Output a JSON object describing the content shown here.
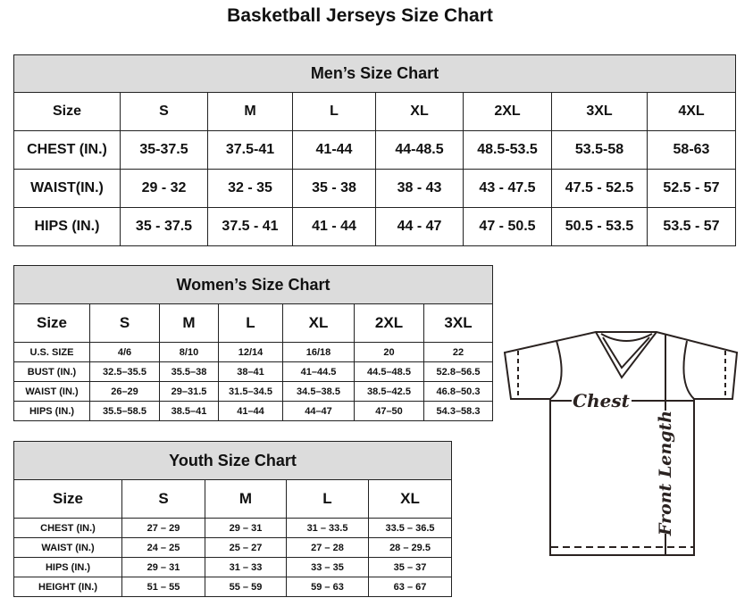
{
  "title": "Basketball Jerseys Size Chart",
  "men": {
    "caption": "Men’s Size Chart",
    "header": [
      "Size",
      "S",
      "M",
      "L",
      "XL",
      "2XL",
      "3XL",
      "4XL"
    ],
    "rows": [
      [
        "CHEST (IN.)",
        "35-37.5",
        "37.5-41",
        "41-44",
        "44-48.5",
        "48.5-53.5",
        "53.5-58",
        "58-63"
      ],
      [
        "WAIST(IN.)",
        "29 - 32",
        "32 - 35",
        "35 - 38",
        "38 - 43",
        "43 - 47.5",
        "47.5 - 52.5",
        "52.5 - 57"
      ],
      [
        "HIPS (IN.)",
        "35 - 37.5",
        "37.5 - 41",
        "41 - 44",
        "44 - 47",
        "47 - 50.5",
        "50.5 - 53.5",
        "53.5 - 57"
      ]
    ]
  },
  "women": {
    "caption": "Women’s Size Chart",
    "header": [
      "Size",
      "S",
      "M",
      "L",
      "XL",
      "2XL",
      "3XL"
    ],
    "rows": [
      [
        "U.S. SIZE",
        "4/6",
        "8/10",
        "12/14",
        "16/18",
        "20",
        "22"
      ],
      [
        "BUST (IN.)",
        "32.5–35.5",
        "35.5–38",
        "38–41",
        "41–44.5",
        "44.5–48.5",
        "52.8–56.5"
      ],
      [
        "WAIST (IN.)",
        "26–29",
        "29–31.5",
        "31.5–34.5",
        "34.5–38.5",
        "38.5–42.5",
        "46.8–50.3"
      ],
      [
        "HIPS (IN.)",
        "35.5–58.5",
        "38.5–41",
        "41–44",
        "44–47",
        "47–50",
        "54.3–58.3"
      ]
    ]
  },
  "youth": {
    "caption": "Youth Size Chart",
    "header": [
      "Size",
      "S",
      "M",
      "L",
      "XL"
    ],
    "rows": [
      [
        "CHEST (IN.)",
        "27 – 29",
        "29 – 31",
        "31 – 33.5",
        "33.5 – 36.5"
      ],
      [
        "WAIST (IN.)",
        "24 – 25",
        "25 – 27",
        "27 – 28",
        "28 – 29.5"
      ],
      [
        "HIPS (IN.)",
        "29 – 31",
        "31 – 33",
        "33 – 35",
        "35 – 37"
      ],
      [
        "HEIGHT (IN.)",
        "51 – 55",
        "55 – 59",
        "59 – 63",
        "63 – 67"
      ]
    ]
  },
  "diagram": {
    "chest_label": "Chest",
    "length_label": "Front Length"
  }
}
